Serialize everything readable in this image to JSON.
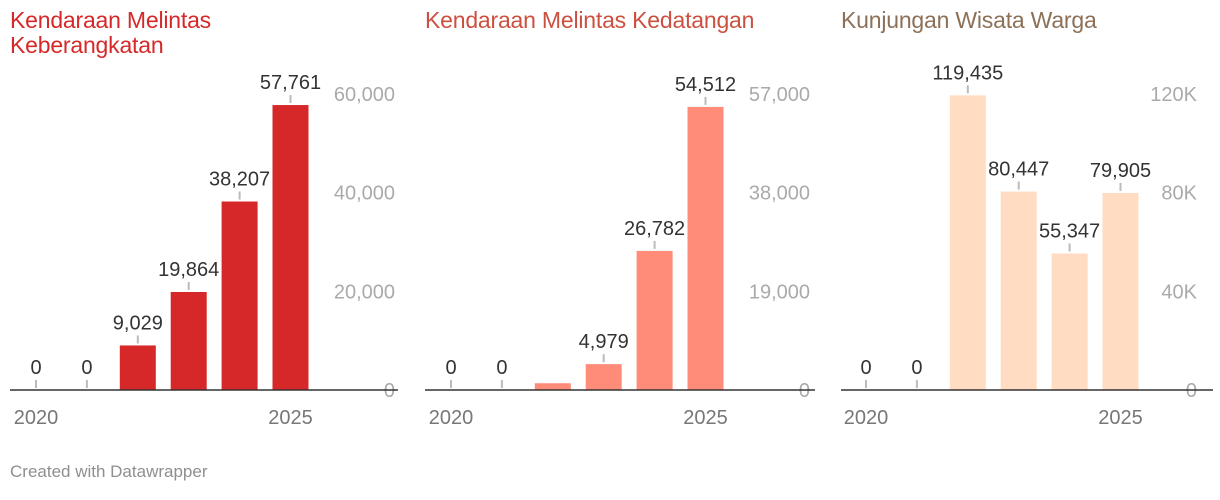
{
  "chart_data": [
    {
      "type": "bar",
      "title": "Kendaraan Melintas Keberangkatan",
      "color": "#d62828",
      "categories": [
        "2020",
        "2021",
        "2022",
        "2023",
        "2024",
        "2025"
      ],
      "values": [
        0,
        0,
        9029,
        19864,
        38207,
        57761
      ],
      "value_labels": [
        "0",
        "0",
        "9,029",
        "19,864",
        "38,207",
        "57,761"
      ],
      "x_tick_labels": [
        "2020",
        "2025"
      ],
      "y_ticks": [
        0,
        20000,
        40000,
        60000
      ],
      "y_tick_labels": [
        "0",
        "20,000",
        "40,000",
        "60,000"
      ],
      "ylim": [
        0,
        60000
      ]
    },
    {
      "type": "bar",
      "title": "Kendaraan Melintas Kedatangan",
      "color": "#ff8c78",
      "title_color": "#cc5040",
      "categories": [
        "2020",
        "2021",
        "2022",
        "2023",
        "2024",
        "2025"
      ],
      "values": [
        0,
        0,
        1300,
        4979,
        26782,
        54512
      ],
      "value_labels": [
        "0",
        "0",
        "",
        "4,979",
        "26,782",
        "54,512"
      ],
      "x_tick_labels": [
        "2020",
        "2025"
      ],
      "y_ticks": [
        0,
        19000,
        38000,
        57000
      ],
      "y_tick_labels": [
        "0",
        "19,000",
        "38,000",
        "57,000"
      ],
      "ylim": [
        0,
        57000
      ]
    },
    {
      "type": "bar",
      "title": "Kunjungan Wisata Warga",
      "color": "#ffdcc2",
      "title_color": "#8c7058",
      "categories": [
        "2020",
        "2021",
        "2022",
        "2023",
        "2024",
        "2025"
      ],
      "values": [
        0,
        0,
        119435,
        80447,
        55347,
        79905
      ],
      "value_labels": [
        "0",
        "0",
        "119,435",
        "80,447",
        "55,347",
        "79,905"
      ],
      "x_tick_labels": [
        "2020",
        "2025"
      ],
      "y_ticks": [
        0,
        40000,
        80000,
        120000
      ],
      "y_tick_labels": [
        "0",
        "40K",
        "80K",
        "120K"
      ],
      "ylim": [
        0,
        120000
      ]
    }
  ],
  "footer": "Created with Datawrapper"
}
